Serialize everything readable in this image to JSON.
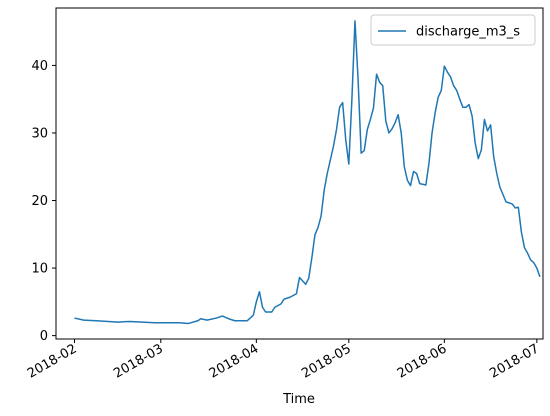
{
  "chart_data": {
    "type": "line",
    "title": "",
    "xlabel": "Time",
    "ylabel": "",
    "x_ticks": [
      "2018-02-01",
      "2018-03-01",
      "2018-04-01",
      "2018-05-01",
      "2018-06-01",
      "2018-07-01"
    ],
    "x_tick_labels": [
      "2018-02",
      "2018-03",
      "2018-04",
      "2018-05",
      "2018-06",
      "2018-07"
    ],
    "y_ticks": [
      0,
      10,
      20,
      30,
      40
    ],
    "ylim": [
      -0.5,
      48.5
    ],
    "xlim": [
      "2018-01-26",
      "2018-07-03"
    ],
    "grid": false,
    "legend": {
      "placement": "upper right",
      "entries": [
        "discharge_m3_s"
      ]
    },
    "colors": {
      "series": "#1f77b4"
    },
    "series": [
      {
        "name": "discharge_m3_s",
        "points": [
          [
            "2018-02-01",
            2.6
          ],
          [
            "2018-02-04",
            2.3
          ],
          [
            "2018-02-08",
            2.2
          ],
          [
            "2018-02-12",
            2.1
          ],
          [
            "2018-02-15",
            2.0
          ],
          [
            "2018-02-19",
            2.1
          ],
          [
            "2018-02-23",
            2.0
          ],
          [
            "2018-02-27",
            1.9
          ],
          [
            "2018-03-03",
            1.9
          ],
          [
            "2018-03-07",
            1.9
          ],
          [
            "2018-03-10",
            1.8
          ],
          [
            "2018-03-13",
            2.2
          ],
          [
            "2018-03-14",
            2.5
          ],
          [
            "2018-03-16",
            2.3
          ],
          [
            "2018-03-19",
            2.6
          ],
          [
            "2018-03-21",
            2.9
          ],
          [
            "2018-03-23",
            2.5
          ],
          [
            "2018-03-25",
            2.2
          ],
          [
            "2018-03-29",
            2.2
          ],
          [
            "2018-03-31",
            3.0
          ],
          [
            "2018-04-01",
            5.0
          ],
          [
            "2018-04-02",
            6.5
          ],
          [
            "2018-04-03",
            4.2
          ],
          [
            "2018-04-04",
            3.5
          ],
          [
            "2018-04-06",
            3.5
          ],
          [
            "2018-04-07",
            4.2
          ],
          [
            "2018-04-09",
            4.7
          ],
          [
            "2018-04-10",
            5.4
          ],
          [
            "2018-04-12",
            5.7
          ],
          [
            "2018-04-14",
            6.2
          ],
          [
            "2018-04-15",
            8.6
          ],
          [
            "2018-04-17",
            7.6
          ],
          [
            "2018-04-18",
            8.5
          ],
          [
            "2018-04-19",
            11.5
          ],
          [
            "2018-04-20",
            14.9
          ],
          [
            "2018-04-21",
            16.0
          ],
          [
            "2018-04-22",
            17.7
          ],
          [
            "2018-04-23",
            21.5
          ],
          [
            "2018-04-24",
            24.0
          ],
          [
            "2018-04-26",
            28.0
          ],
          [
            "2018-04-27",
            30.5
          ],
          [
            "2018-04-28",
            33.8
          ],
          [
            "2018-04-29",
            34.5
          ],
          [
            "2018-04-30",
            29.0
          ],
          [
            "2018-05-01",
            25.4
          ],
          [
            "2018-05-02",
            35.0
          ],
          [
            "2018-05-03",
            46.6
          ],
          [
            "2018-05-04",
            38.0
          ],
          [
            "2018-05-05",
            27.0
          ],
          [
            "2018-05-06",
            27.4
          ],
          [
            "2018-05-07",
            30.5
          ],
          [
            "2018-05-08",
            32.0
          ],
          [
            "2018-05-09",
            33.7
          ],
          [
            "2018-05-10",
            38.7
          ],
          [
            "2018-05-11",
            37.5
          ],
          [
            "2018-05-12",
            37.0
          ],
          [
            "2018-05-13",
            31.8
          ],
          [
            "2018-05-14",
            30.0
          ],
          [
            "2018-05-15",
            30.6
          ],
          [
            "2018-05-16",
            31.5
          ],
          [
            "2018-05-17",
            32.7
          ],
          [
            "2018-05-18",
            30.0
          ],
          [
            "2018-05-19",
            25.0
          ],
          [
            "2018-05-20",
            23.0
          ],
          [
            "2018-05-21",
            22.2
          ],
          [
            "2018-05-22",
            24.3
          ],
          [
            "2018-05-23",
            24.0
          ],
          [
            "2018-05-24",
            22.5
          ],
          [
            "2018-05-26",
            22.3
          ],
          [
            "2018-05-27",
            25.5
          ],
          [
            "2018-05-28",
            30.0
          ],
          [
            "2018-05-29",
            33.0
          ],
          [
            "2018-05-30",
            35.3
          ],
          [
            "2018-05-31",
            36.3
          ],
          [
            "2018-06-01",
            39.9
          ],
          [
            "2018-06-02",
            39.0
          ],
          [
            "2018-06-03",
            38.3
          ],
          [
            "2018-06-04",
            37.0
          ],
          [
            "2018-06-05",
            36.3
          ],
          [
            "2018-06-06",
            35.0
          ],
          [
            "2018-06-07",
            33.8
          ],
          [
            "2018-06-08",
            33.8
          ],
          [
            "2018-06-09",
            34.2
          ],
          [
            "2018-06-10",
            32.5
          ],
          [
            "2018-06-11",
            28.5
          ],
          [
            "2018-06-12",
            26.2
          ],
          [
            "2018-06-13",
            27.5
          ],
          [
            "2018-06-14",
            32.0
          ],
          [
            "2018-06-15",
            30.3
          ],
          [
            "2018-06-16",
            31.2
          ],
          [
            "2018-06-17",
            26.5
          ],
          [
            "2018-06-18",
            24.0
          ],
          [
            "2018-06-19",
            22.0
          ],
          [
            "2018-06-21",
            19.8
          ],
          [
            "2018-06-23",
            19.5
          ],
          [
            "2018-06-24",
            18.9
          ],
          [
            "2018-06-25",
            19.0
          ],
          [
            "2018-06-26",
            15.3
          ],
          [
            "2018-06-27",
            13.0
          ],
          [
            "2018-06-28",
            12.2
          ],
          [
            "2018-06-29",
            11.2
          ],
          [
            "2018-06-30",
            10.8
          ],
          [
            "2018-07-01",
            10.0
          ],
          [
            "2018-07-02",
            8.7
          ]
        ]
      }
    ]
  }
}
